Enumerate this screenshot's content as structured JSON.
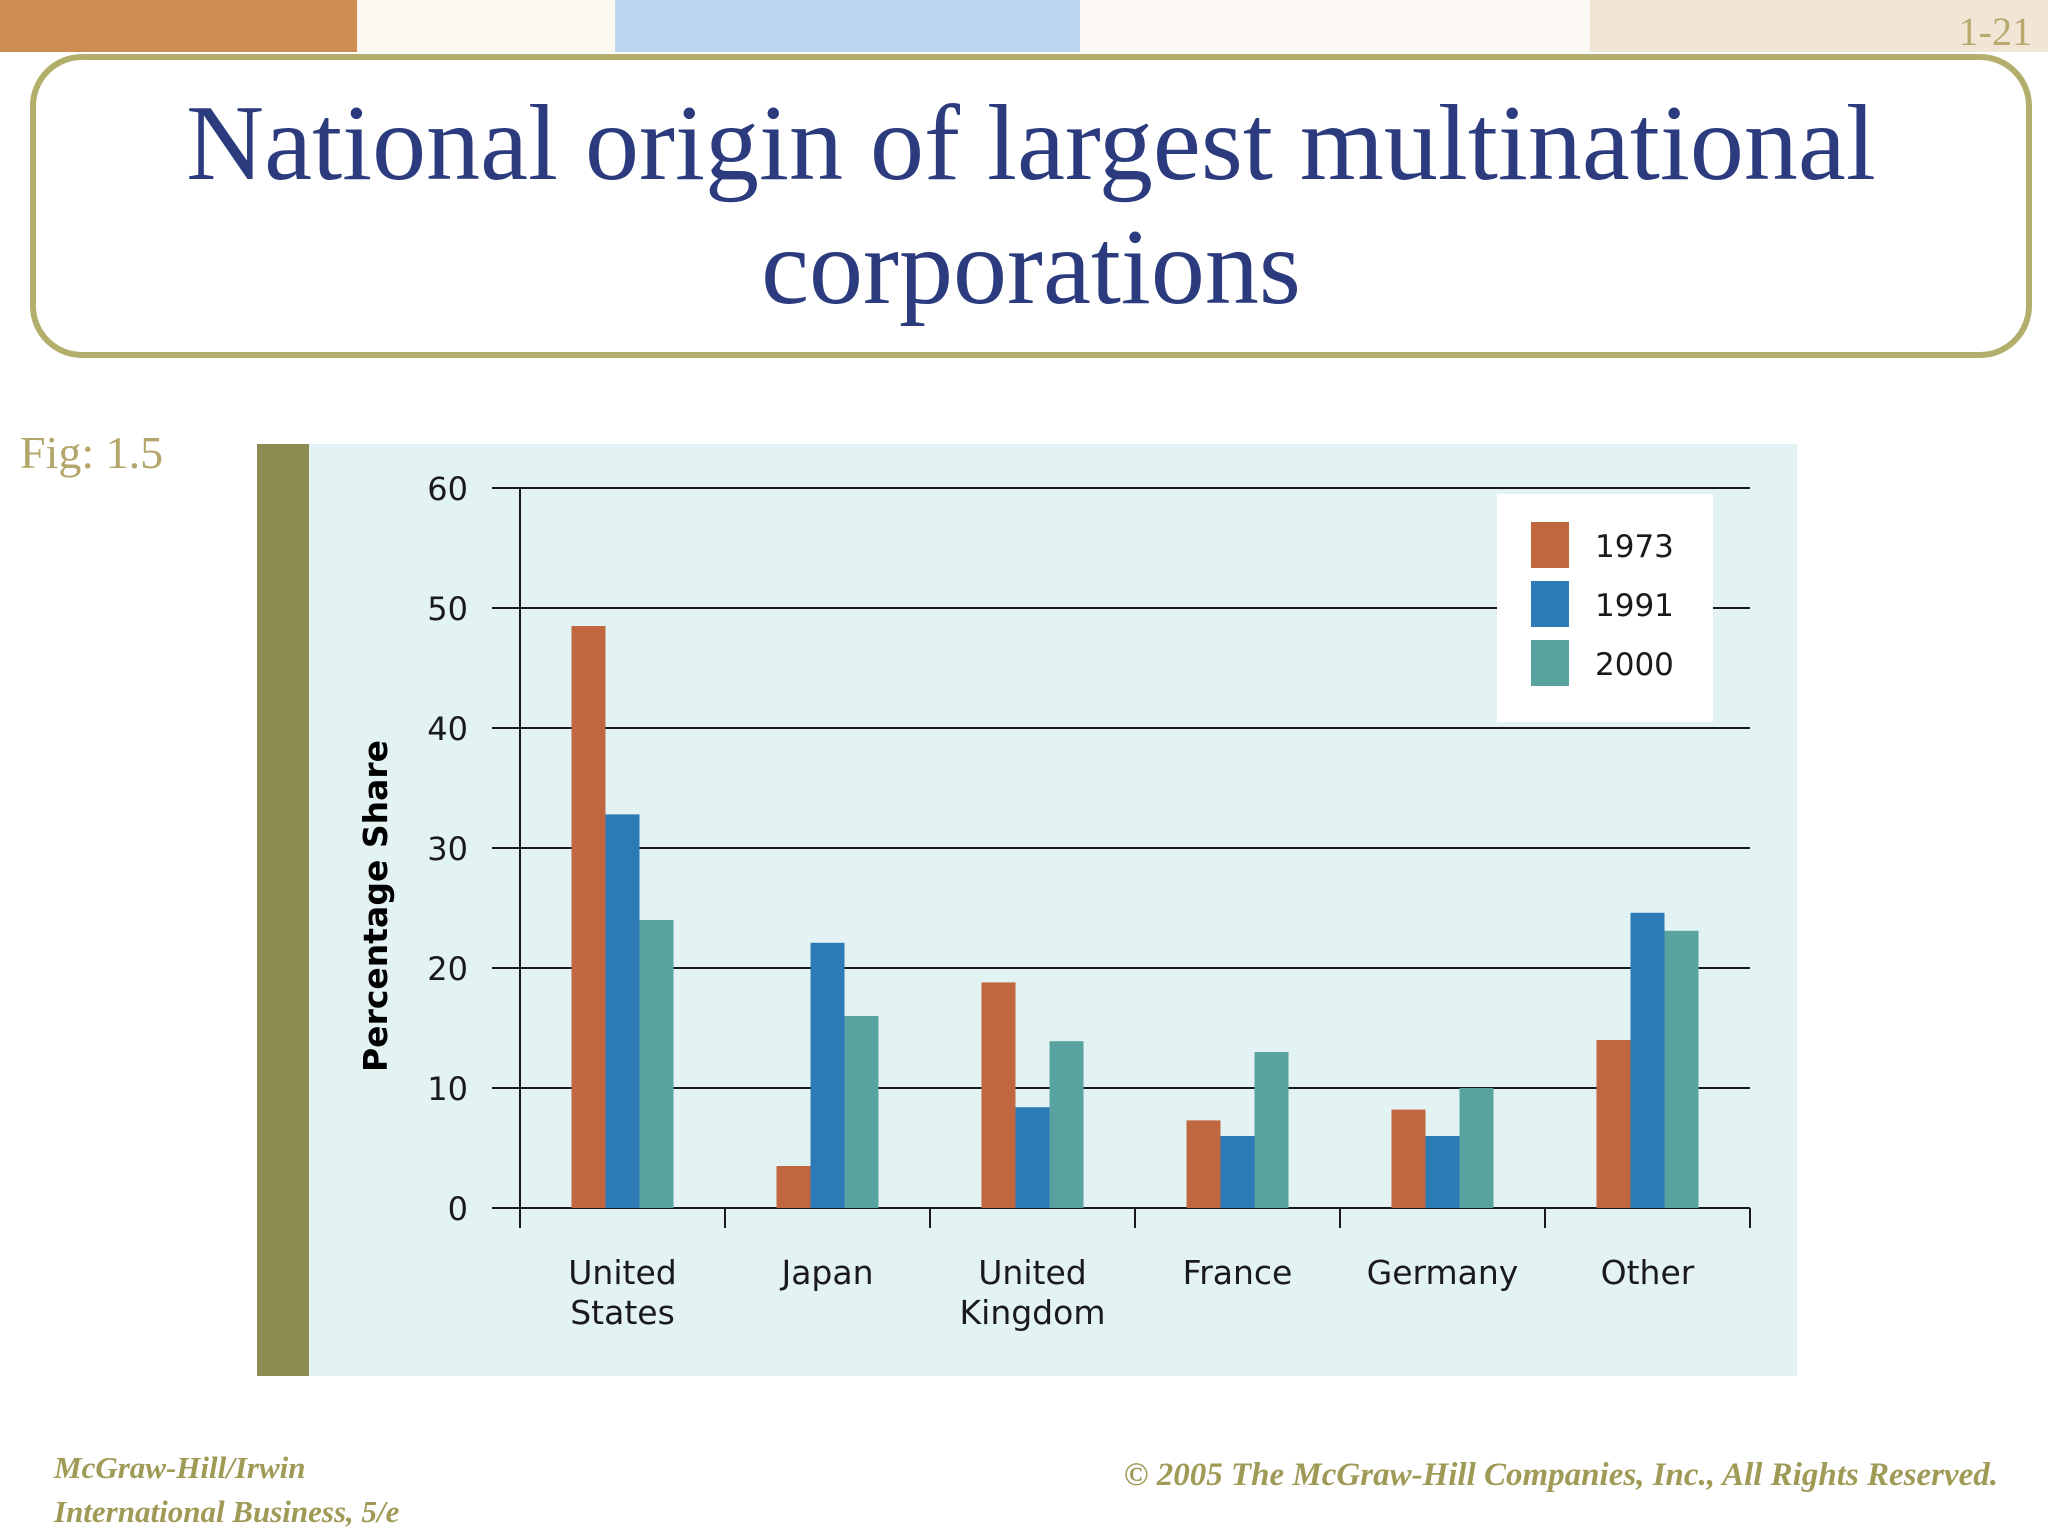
{
  "slide": {
    "number": "1-21",
    "title": "National origin of largest multinational corporations",
    "fig_label": "Fig: 1.5",
    "footer_left_line1": "McGraw-Hill/Irwin",
    "footer_left_line2": "International Business, 5/e",
    "footer_right": "© 2005 The McGraw-Hill Companies, Inc., All Rights Reserved."
  },
  "colors": {
    "title": "#2b3b7e",
    "olive": "#8e8b52",
    "chart_background": "#e3f2f3",
    "series_1973": "#c06740",
    "series_1991": "#2c7bb7",
    "series_2000": "#58a3a0",
    "topbar": [
      "#cd8c52",
      "#fdf7f2",
      "#b9d6ee",
      "#fdf9f6",
      "#f1e6d6"
    ]
  },
  "chart_data": {
    "type": "bar",
    "title": "",
    "xlabel": "",
    "ylabel": "Percentage Share",
    "ylim": [
      0,
      60
    ],
    "yticks": [
      0,
      10,
      20,
      30,
      40,
      50,
      60
    ],
    "grid": true,
    "legend_position": "top-right",
    "categories": [
      [
        "United",
        "States"
      ],
      [
        "Japan"
      ],
      [
        "United",
        "Kingdom"
      ],
      [
        "France"
      ],
      [
        "Germany"
      ],
      [
        "Other"
      ]
    ],
    "series": [
      {
        "name": "1973",
        "color": "#c06740",
        "values": [
          48.5,
          3.5,
          18.8,
          7.3,
          8.2,
          14.0
        ]
      },
      {
        "name": "1991",
        "color": "#2c7bb7",
        "values": [
          32.8,
          22.1,
          8.4,
          6.0,
          6.0,
          24.6
        ]
      },
      {
        "name": "2000",
        "color": "#58a3a0",
        "values": [
          24.0,
          16.0,
          13.9,
          13.0,
          10.0,
          23.1
        ]
      }
    ]
  }
}
